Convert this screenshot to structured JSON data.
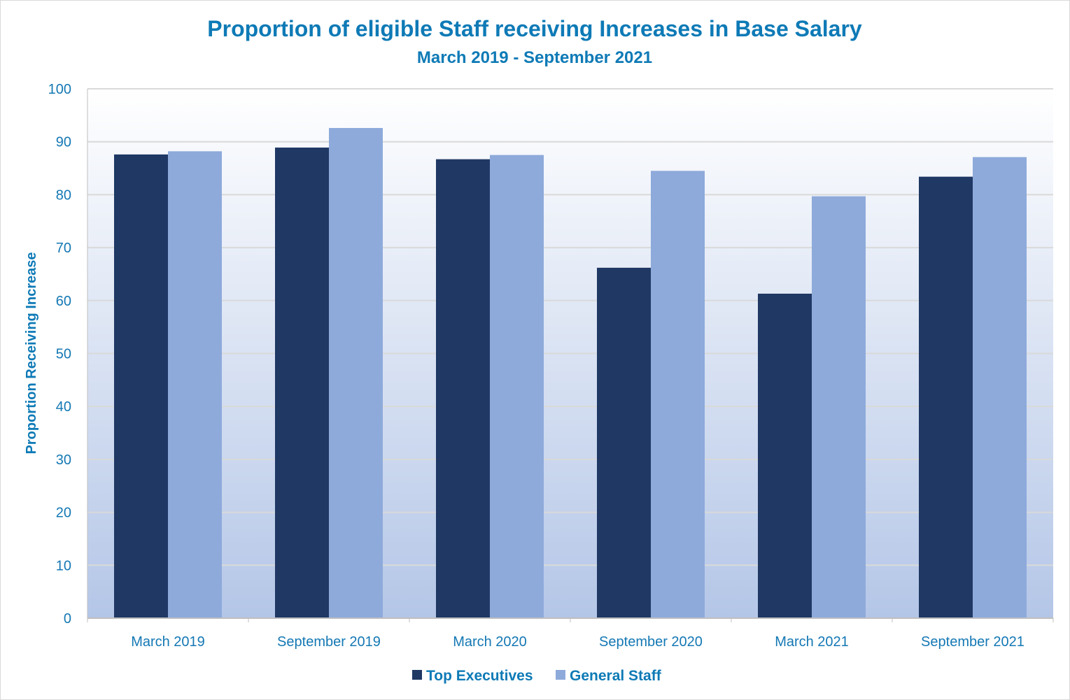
{
  "chart_data": {
    "type": "bar",
    "title": "Proportion of eligible Staff receiving Increases in Base Salary",
    "subtitle": "March 2019 - September 2021",
    "xlabel": "",
    "ylabel": "Proportion Receiving Increase",
    "ylim": [
      0,
      100
    ],
    "yticks": [
      0,
      10,
      20,
      30,
      40,
      50,
      60,
      70,
      80,
      90,
      100
    ],
    "grid": true,
    "legend_position": "bottom",
    "categories": [
      "March 2019",
      "September 2019",
      "March 2020",
      "September 2020",
      "March 2021",
      "September 2021"
    ],
    "series": [
      {
        "name": "Top Executives",
        "color": "#1f3864",
        "values": [
          87.6,
          88.9,
          86.7,
          66.2,
          61.3,
          83.4
        ]
      },
      {
        "name": "General Staff",
        "color": "#8eaadb",
        "values": [
          88.2,
          92.6,
          87.5,
          84.5,
          79.7,
          87.1
        ]
      }
    ]
  }
}
